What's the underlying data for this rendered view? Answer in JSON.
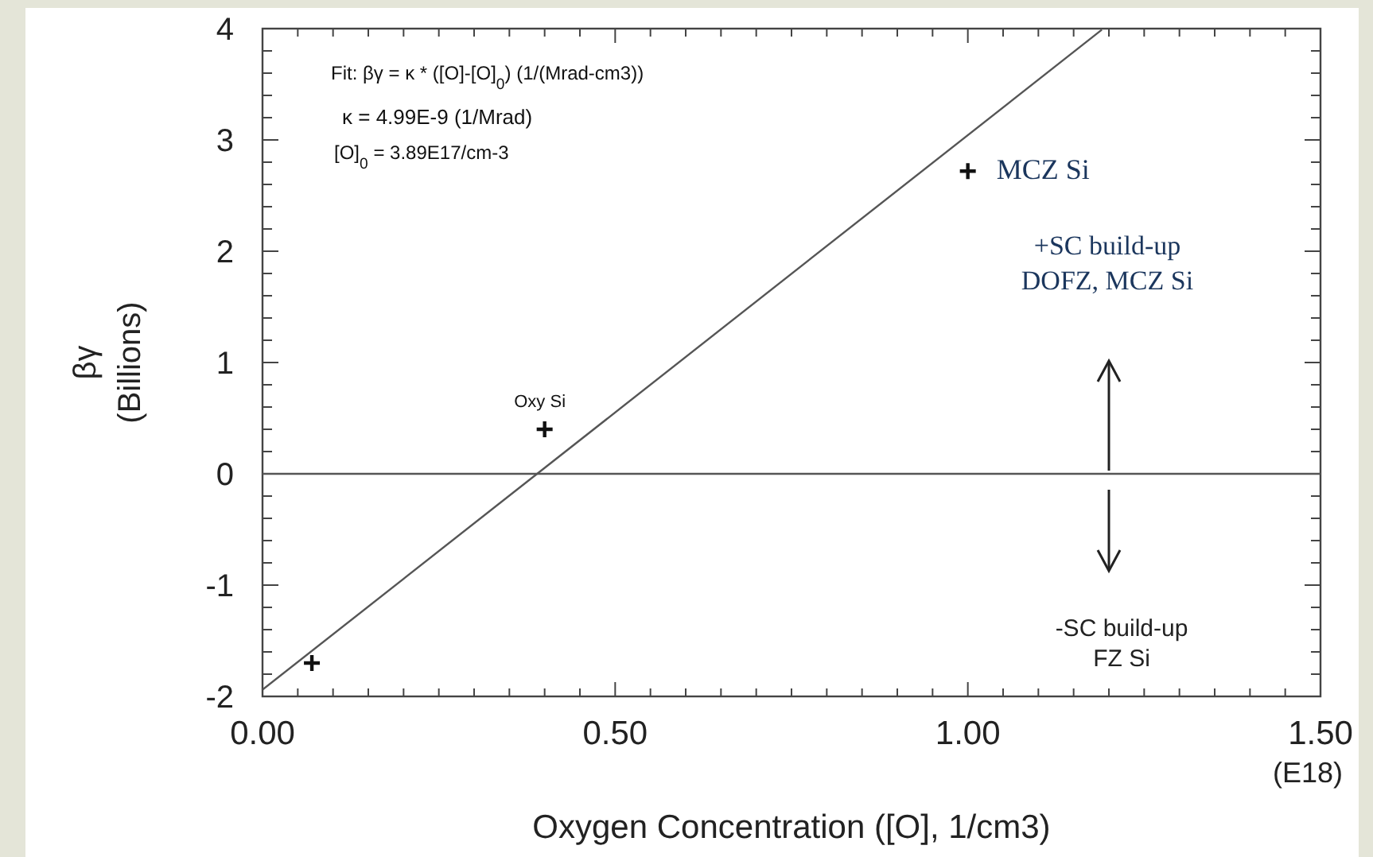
{
  "chart_data": {
    "type": "scatter",
    "xlabel": "Oxygen Concentration ([O], 1/cm3)",
    "ylabel": "βγ\n(Billions)",
    "xlim": [
      0,
      1.5
    ],
    "ylim": [
      -2,
      4
    ],
    "xticks": [
      {
        "value": 0,
        "label": "0.00"
      },
      {
        "value": 0.05,
        "label": null
      },
      {
        "value": 0.1,
        "label": null
      },
      {
        "value": 0.15,
        "label": null
      },
      {
        "value": 0.2,
        "label": null
      },
      {
        "value": 0.25,
        "label": null
      },
      {
        "value": 0.3,
        "label": null
      },
      {
        "value": 0.35,
        "label": null
      },
      {
        "value": 0.4,
        "label": null
      },
      {
        "value": 0.45,
        "label": null
      },
      {
        "value": 0.5,
        "label": "0.50"
      },
      {
        "value": 0.55,
        "label": null
      },
      {
        "value": 0.6,
        "label": null
      },
      {
        "value": 0.65,
        "label": null
      },
      {
        "value": 0.7,
        "label": null
      },
      {
        "value": 0.75,
        "label": null
      },
      {
        "value": 0.8,
        "label": null
      },
      {
        "value": 0.85,
        "label": null
      },
      {
        "value": 0.9,
        "label": null
      },
      {
        "value": 0.95,
        "label": null
      },
      {
        "value": 1,
        "label": "1.00"
      },
      {
        "value": 1.05,
        "label": null
      },
      {
        "value": 1.1,
        "label": null
      },
      {
        "value": 1.15,
        "label": null
      },
      {
        "value": 1.2,
        "label": null
      },
      {
        "value": 1.25,
        "label": null
      },
      {
        "value": 1.3,
        "label": null
      },
      {
        "value": 1.35,
        "label": null
      },
      {
        "value": 1.4,
        "label": null
      },
      {
        "value": 1.45,
        "label": null
      },
      {
        "value": 1.5,
        "label": "1.50"
      }
    ],
    "yticks": [
      -2,
      {
        "value": -1.8,
        "label": null
      },
      {
        "value": -1.6,
        "label": null
      },
      {
        "value": -1.4,
        "label": null
      },
      {
        "value": -1.2,
        "label": null
      },
      -1,
      {
        "value": -0.8,
        "label": null
      },
      {
        "value": -0.6,
        "label": null
      },
      {
        "value": -0.4,
        "label": null
      },
      {
        "value": -0.2,
        "label": null
      },
      0,
      {
        "value": 0.2,
        "label": null
      },
      {
        "value": 0.4,
        "label": null
      },
      {
        "value": 0.6,
        "label": null
      },
      {
        "value": 0.8,
        "label": null
      },
      1,
      {
        "value": 1.2,
        "label": null
      },
      {
        "value": 1.4,
        "label": null
      },
      {
        "value": 1.6,
        "label": null
      },
      {
        "value": 1.8,
        "label": null
      },
      2,
      {
        "value": 2.2,
        "label": null
      },
      {
        "value": 2.4,
        "label": null
      },
      {
        "value": 2.6,
        "label": null
      },
      {
        "value": 2.8,
        "label": null
      },
      3,
      {
        "value": 3.2,
        "label": null
      },
      {
        "value": 3.4,
        "label": null
      },
      {
        "value": 3.6,
        "label": null
      },
      {
        "value": 3.8,
        "label": null
      },
      4
    ],
    "marker": "cross",
    "grid": false,
    "series": [
      {
        "color": "#111111",
        "x": [
          0.07,
          0.4,
          1.0
        ],
        "values": [
          -1.7,
          0.4,
          2.72
        ]
      },
      {
        "type": "line",
        "marker": "none",
        "color": "#555555",
        "x": [
          0,
          1.19
        ],
        "values": [
          -1.94,
          3.99
        ]
      }
    ],
    "ref_lines": [
      {
        "axis": "y",
        "value": 0,
        "color": "#555555"
      }
    ],
    "annotations": [
      "Fit:  βγ = κ * ([O]-[O]$_{0}$)   (1/(Mrad-cm3))",
      "κ =  4.99E-9  (1/Mrad)",
      "[O]$_{0}$ = 3.89E17/cm-3",
      {
        "text": "Oxy Si",
        "x": 0.4,
        "y": 0.4
      },
      {
        "text": "MCZ Si",
        "x": 1.0,
        "y": 2.72
      },
      "+SC build-up\nDOFZ, MCZ Si",
      "-SC build-up\nFZ Si",
      "(E18)"
    ]
  }
}
